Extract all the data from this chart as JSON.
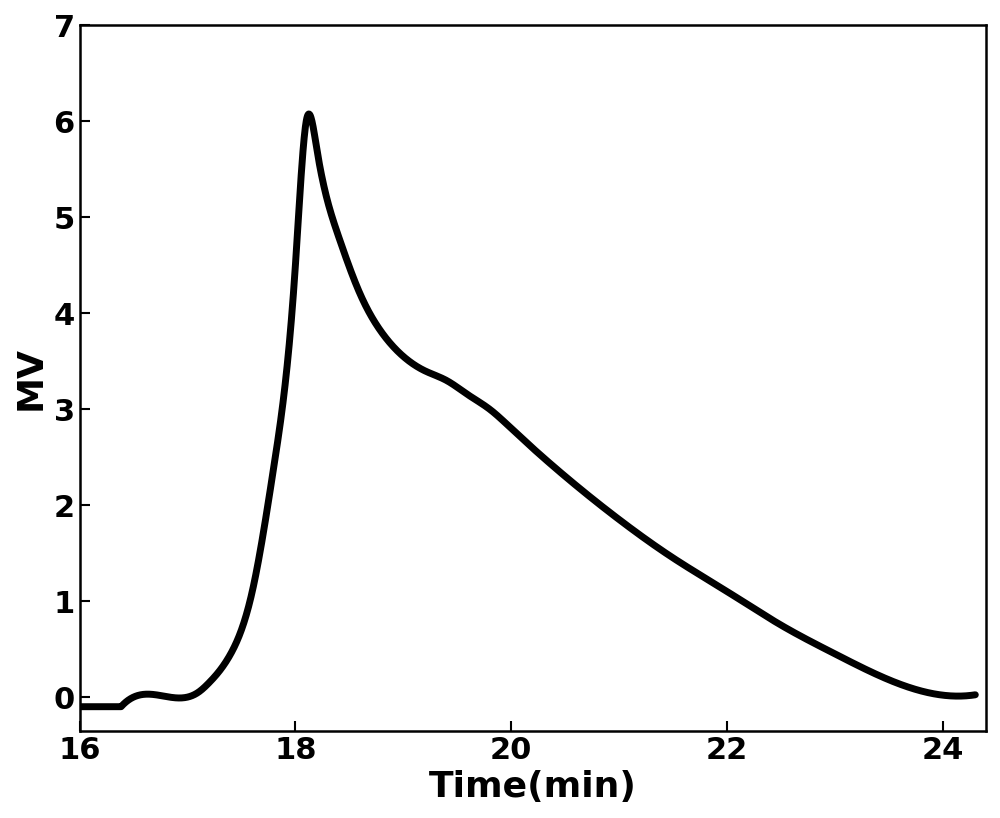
{
  "title": "",
  "xlabel": "Time(min)",
  "ylabel": "MV",
  "xlim": [
    16,
    24.4
  ],
  "ylim": [
    -0.35,
    7
  ],
  "xticks": [
    16,
    18,
    20,
    22,
    24
  ],
  "yticks": [
    0,
    1,
    2,
    3,
    4,
    5,
    6,
    7
  ],
  "line_color": "#000000",
  "line_width": 5.0,
  "background_color": "#ffffff",
  "xlabel_fontsize": 26,
  "ylabel_fontsize": 26,
  "tick_fontsize": 22,
  "control_points_x": [
    16.5,
    17.0,
    17.1,
    17.2,
    17.4,
    17.6,
    17.8,
    18.0,
    18.1,
    18.2,
    18.4,
    18.6,
    18.8,
    19.0,
    19.2,
    19.4,
    19.6,
    19.8,
    20.0,
    20.5,
    21.0,
    21.5,
    22.0,
    22.5,
    23.0,
    23.5,
    24.0
  ],
  "control_points_y": [
    0.0,
    0.0,
    0.05,
    0.15,
    0.45,
    1.1,
    2.4,
    4.5,
    6.0,
    5.7,
    4.8,
    4.2,
    3.8,
    3.55,
    3.4,
    3.3,
    3.15,
    3.0,
    2.8,
    2.3,
    1.85,
    1.45,
    1.1,
    0.75,
    0.45,
    0.18,
    0.02
  ]
}
